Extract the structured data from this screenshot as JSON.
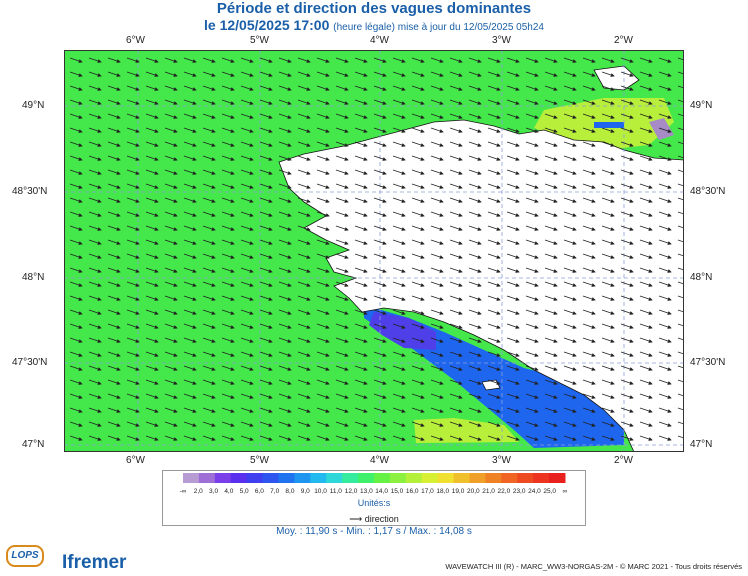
{
  "header": {
    "title": "Période et direction des vagues dominantes",
    "date_line": "le 12/05/2025 17:00",
    "update_note": "(heure légale) mise à jour du 12/05/2025 05h24"
  },
  "axes": {
    "longitude_labels": [
      "6°W",
      "5°W",
      "4°W",
      "3°W",
      "2°W"
    ],
    "latitude_labels": [
      "49°N",
      "48°30'N",
      "48°N",
      "47°30'N",
      "47°N"
    ]
  },
  "colorbar": {
    "labels": [
      "-∞",
      "2,0",
      "3,0",
      "4,0",
      "5,0",
      "6,0",
      "7,0",
      "8,0",
      "9,0",
      "10,0",
      "11,0",
      "12,0",
      "13,0",
      "14,0",
      "15,0",
      "16,0",
      "17,0",
      "18,0",
      "19,0",
      "20,0",
      "21,0",
      "22,0",
      "23,0",
      "24,0",
      "25,0",
      "∞"
    ],
    "colors": [
      "#b79bd3",
      "#9e6fd6",
      "#7a3fe8",
      "#5a2fee",
      "#3f3ff0",
      "#2f55f0",
      "#1f73ee",
      "#1e96f0",
      "#22b9ee",
      "#2ed7d8",
      "#35ec9e",
      "#3ff06a",
      "#66f245",
      "#8cf040",
      "#b4f03a",
      "#d8f034",
      "#f0e02f",
      "#f0c02c",
      "#f0a029",
      "#f08226",
      "#f06424",
      "#ee4a22",
      "#ec3420",
      "#e8201e"
    ],
    "units": "Unités:s",
    "direction_legend": "direction"
  },
  "stats": "Moy. : 11,90 s  -  Min. : 1,17 s / Max. : 14,08 s",
  "logos": {
    "left": "LOPS",
    "right": "Ifremer"
  },
  "credits": "WAVEWATCH III (R) - MARC_WW3-NORGAS-2M - © MARC 2021 - Tous droits réservés",
  "map_colors": {
    "sea_main": "#44e84a",
    "sea_blue": "#1f66ef",
    "sea_violet": "#4e3fe8",
    "sea_yellow": "#b8ef3a",
    "sea_purple": "#a68bc7",
    "land": "#ffffff",
    "arrow": "#222222",
    "grid": "#8aa0d8"
  }
}
